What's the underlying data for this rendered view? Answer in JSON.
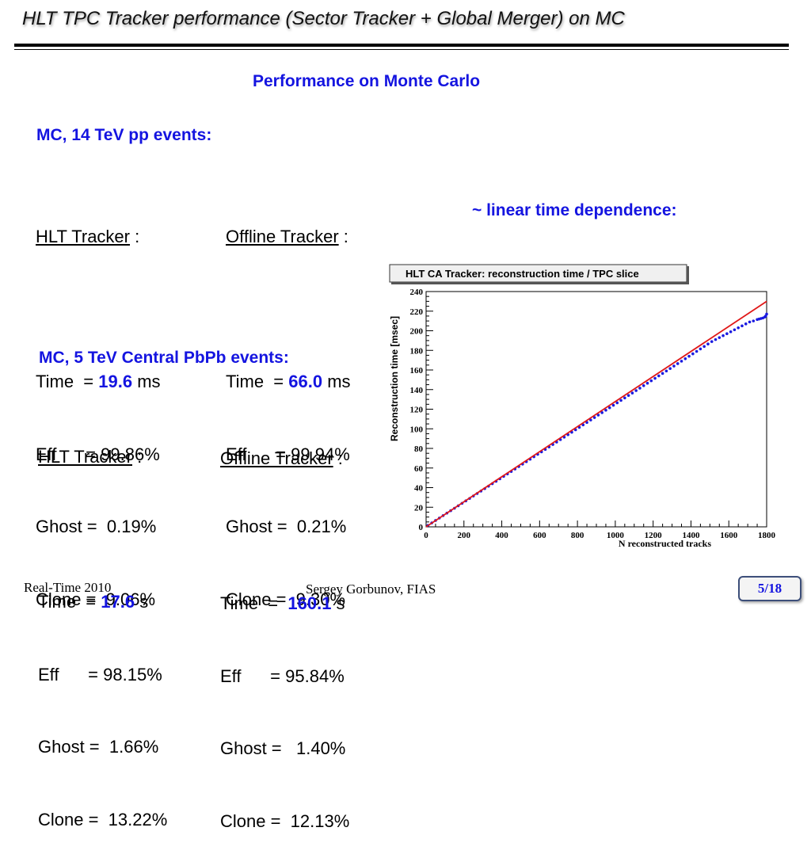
{
  "header": {
    "title": "HLT TPC Tracker performance (Sector Tracker + Global Merger) on MC"
  },
  "subtitle": "Performance on Monte Carlo",
  "pp": {
    "heading": "MC, 14 TeV pp events:",
    "hlt": {
      "title": "HLT Tracker",
      "sep": " :",
      "time_label": "Time  = ",
      "time_value": "19.6",
      "time_unit": " ms",
      "eff": "Eff      = 99.86%",
      "ghost": "Ghost =  0.19%",
      "clone": "Clone =  9.06%"
    },
    "offline": {
      "title": "Offline Tracker",
      "sep": " :",
      "time_label": "Time  = ",
      "time_value": "66.0",
      "time_unit": " ms",
      "eff": "Eff      = 99.94%",
      "ghost": "Ghost =  0.21%",
      "clone": "Clone =  9.30%"
    }
  },
  "pbpb": {
    "heading": "MC, 5 TeV Central PbPb events:",
    "hlt": {
      "title": "HLT Tracker",
      "sep": " :",
      "time_label": "Time  = ",
      "time_value": "17.6",
      "time_unit": " s",
      "eff": "Eff      = 98.15%",
      "ghost": "Ghost =  1.66%",
      "clone": "Clone =  13.22%"
    },
    "offline": {
      "title": "Offline Tracker",
      "sep": " :",
      "time_label": "Time  =  ",
      "time_value": "160.1",
      "time_unit": " s",
      "eff": "Eff      = 95.84%",
      "ghost": "Ghost =   1.40%",
      "clone": "Clone =  12.13%"
    }
  },
  "chart_caption": "~ linear time dependence:",
  "chart_data": {
    "type": "scatter",
    "title": "HLT CA Tracker: reconstruction time / TPC slice",
    "xlabel": "N reconstructed tracks",
    "ylabel": "Reconstruction time [msec]",
    "xlim": [
      0,
      1800
    ],
    "ylim": [
      0,
      240
    ],
    "xticks": [
      0,
      200,
      400,
      600,
      800,
      1000,
      1200,
      1400,
      1600,
      1800
    ],
    "yticks": [
      0,
      20,
      40,
      60,
      80,
      100,
      120,
      140,
      160,
      180,
      200,
      220,
      240
    ],
    "series": [
      {
        "color": "#1a1ae0",
        "x": [
          10,
          30,
          50,
          70,
          90,
          110,
          130,
          150,
          170,
          190,
          210,
          230,
          250,
          270,
          290,
          310,
          330,
          350,
          370,
          390,
          410,
          430,
          450,
          470,
          490,
          510,
          530,
          550,
          570,
          590,
          610,
          630,
          650,
          670,
          690,
          710,
          730,
          750,
          770,
          790,
          810,
          830,
          850,
          870,
          890,
          910,
          930,
          950,
          970,
          990,
          1010,
          1030,
          1050,
          1070,
          1090,
          1110,
          1130,
          1150,
          1170,
          1190,
          1210,
          1230,
          1250,
          1270,
          1290,
          1310,
          1330,
          1350,
          1370,
          1390,
          1410,
          1430,
          1450,
          1470,
          1490,
          1510,
          1530,
          1550,
          1570,
          1590,
          1610,
          1630,
          1650,
          1670,
          1690,
          1710,
          1730,
          1750,
          1760,
          1770,
          1780,
          1790,
          1795,
          1800
        ],
        "y": [
          1.5,
          4,
          6.5,
          9,
          11.5,
          14,
          16.5,
          19,
          21.5,
          24,
          26.5,
          29,
          31.5,
          34,
          36.5,
          39,
          41.5,
          44,
          46.5,
          49,
          51.5,
          54,
          56.5,
          59,
          61.5,
          64,
          66.5,
          69,
          71.5,
          74,
          76.5,
          79,
          81.5,
          84,
          86.5,
          89,
          91.5,
          94,
          96.5,
          99,
          101.5,
          104,
          106.5,
          109,
          111.5,
          114,
          116.5,
          119,
          121.5,
          124,
          126.5,
          129,
          131.5,
          134,
          136.5,
          139,
          141.5,
          144,
          146.5,
          149,
          151.5,
          154,
          156.5,
          159,
          161.5,
          164,
          166.5,
          169,
          171.5,
          174,
          176.5,
          179,
          181.5,
          184,
          186.5,
          189,
          191,
          193,
          195,
          197,
          199,
          201,
          203,
          205,
          207,
          209,
          210,
          211.5,
          212,
          212.5,
          213,
          214,
          215,
          217
        ]
      },
      {
        "type": "line",
        "color": "#e01818",
        "x": [
          0,
          1800
        ],
        "y": [
          0,
          230
        ]
      }
    ]
  },
  "footer": {
    "left": "Real-Time 2010",
    "center": "Sergey Gorbunov, FIAS",
    "page": "5/18"
  }
}
